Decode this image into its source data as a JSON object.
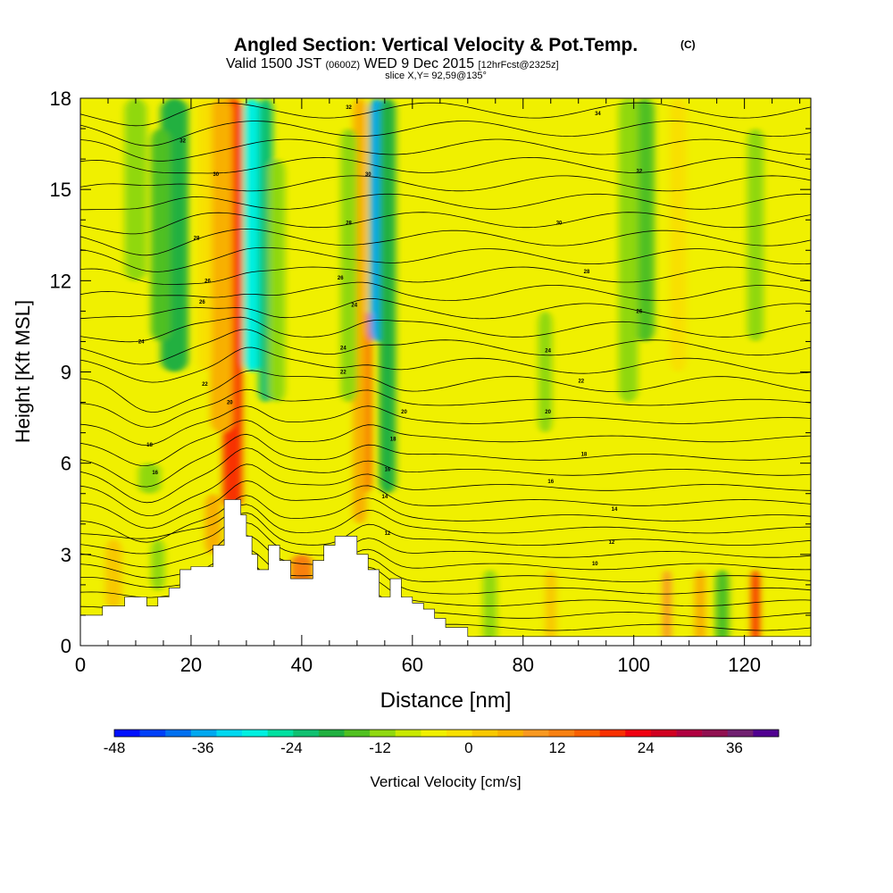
{
  "header": {
    "title": "Angled Section: Vertical Velocity & Pot.Temp.",
    "title_unit": "(C)",
    "valid_prefix": "Valid 1500 JST",
    "valid_utc": "(0600Z)",
    "valid_date": "WED 9 Dec 2015",
    "forecast": "[12hrFcst@2325z]",
    "slice": "slice X,Y= 92,59@135°"
  },
  "chart_data": {
    "type": "heatmap",
    "xlabel": "Distance [nm]",
    "ylabel": "Height [Kft MSL]",
    "xlim": [
      0,
      132
    ],
    "ylim": [
      0,
      18
    ],
    "x_ticks": [
      0,
      20,
      40,
      60,
      80,
      100,
      120
    ],
    "y_ticks": [
      0,
      3,
      6,
      9,
      12,
      15,
      18
    ],
    "background_value_cms": 2,
    "vertical_velocity_features": [
      {
        "x": 27.5,
        "width_nm": 3.5,
        "z_bottom": 4.5,
        "z_top": 18,
        "value": 28
      },
      {
        "x": 25.5,
        "width_nm": 4.0,
        "z_bottom": 7,
        "z_top": 18,
        "value": 14
      },
      {
        "x": 22.5,
        "width_nm": 2.5,
        "z_bottom": 9,
        "z_top": 18,
        "value": 7
      },
      {
        "x": 31.0,
        "width_nm": 3.0,
        "z_bottom": 9,
        "z_top": 18,
        "value": -28
      },
      {
        "x": 33.5,
        "width_nm": 2.5,
        "z_bottom": 8,
        "z_top": 18,
        "value": -18
      },
      {
        "x": 35.5,
        "width_nm": 3.0,
        "z_bottom": 8,
        "z_top": 16,
        "value": -8
      },
      {
        "x": 17.0,
        "width_nm": 5.0,
        "z_bottom": 9,
        "z_top": 18,
        "value": -16
      },
      {
        "x": 14.5,
        "width_nm": 3.5,
        "z_bottom": 10,
        "z_top": 17,
        "value": -12
      },
      {
        "x": 10.0,
        "width_nm": 4.0,
        "z_bottom": 12,
        "z_top": 18,
        "value": -6
      },
      {
        "x": 12.5,
        "width_nm": 4.0,
        "z_bottom": 5,
        "z_top": 6,
        "value": -6
      },
      {
        "x": 51.5,
        "width_nm": 2.0,
        "z_bottom": 5,
        "z_top": 11,
        "value": 30
      },
      {
        "x": 50.5,
        "width_nm": 2.5,
        "z_bottom": 4,
        "z_top": 18,
        "value": 12
      },
      {
        "x": 53.5,
        "width_nm": 2.5,
        "z_bottom": 10,
        "z_top": 18,
        "value": -34
      },
      {
        "x": 55.5,
        "width_nm": 3.0,
        "z_bottom": 5,
        "z_top": 18,
        "value": -14
      },
      {
        "x": 48.5,
        "width_nm": 3.0,
        "z_bottom": 8,
        "z_top": 17,
        "value": -6
      },
      {
        "x": 102.0,
        "width_nm": 3.5,
        "z_bottom": 10,
        "z_top": 18,
        "value": -12
      },
      {
        "x": 99.0,
        "width_nm": 3.5,
        "z_bottom": 8,
        "z_top": 18,
        "value": -6
      },
      {
        "x": 108.0,
        "width_nm": 3.0,
        "z_bottom": 9,
        "z_top": 18,
        "value": 7
      },
      {
        "x": 122.0,
        "width_nm": 3.0,
        "z_bottom": 10,
        "z_top": 17,
        "value": -6
      },
      {
        "x": 84.0,
        "width_nm": 2.5,
        "z_bottom": 7,
        "z_top": 11,
        "value": -7
      },
      {
        "x": 122.0,
        "width_nm": 1.5,
        "z_bottom": 0,
        "z_top": 2.5,
        "value": 30
      },
      {
        "x": 112.0,
        "width_nm": 2.0,
        "z_bottom": 0,
        "z_top": 2.5,
        "value": 14
      },
      {
        "x": 106.0,
        "width_nm": 1.5,
        "z_bottom": 0,
        "z_top": 2.5,
        "value": 18
      },
      {
        "x": 116.0,
        "width_nm": 2.5,
        "z_bottom": 0,
        "z_top": 2.5,
        "value": -10
      },
      {
        "x": 85.0,
        "width_nm": 2.0,
        "z_bottom": 0,
        "z_top": 2.5,
        "value": 10
      },
      {
        "x": 74.0,
        "width_nm": 2.5,
        "z_bottom": 0,
        "z_top": 2.5,
        "value": -8
      },
      {
        "x": 40.0,
        "width_nm": 4.0,
        "z_bottom": 1.8,
        "z_top": 3.0,
        "value": 20
      },
      {
        "x": 24.0,
        "width_nm": 3.0,
        "z_bottom": 3.0,
        "z_top": 5.0,
        "value": 12
      },
      {
        "x": 6.0,
        "width_nm": 3.0,
        "z_bottom": 1.2,
        "z_top": 3.5,
        "value": 8
      },
      {
        "x": 14.0,
        "width_nm": 2.5,
        "z_bottom": 1.8,
        "z_top": 3.5,
        "value": -8
      }
    ],
    "terrain": [
      [
        0,
        1
      ],
      [
        4,
        1
      ],
      [
        4,
        1.3
      ],
      [
        8,
        1.3
      ],
      [
        8,
        1.6
      ],
      [
        12,
        1.6
      ],
      [
        12,
        1.3
      ],
      [
        14,
        1.3
      ],
      [
        14,
        1.6
      ],
      [
        16,
        1.6
      ],
      [
        16,
        1.9
      ],
      [
        18,
        1.9
      ],
      [
        18,
        2.5
      ],
      [
        20,
        2.5
      ],
      [
        20,
        2.6
      ],
      [
        24,
        2.6
      ],
      [
        24,
        3.3
      ],
      [
        26,
        3.3
      ],
      [
        26,
        4.8
      ],
      [
        29,
        4.8
      ],
      [
        29,
        4.3
      ],
      [
        30,
        4.3
      ],
      [
        30,
        3.6
      ],
      [
        31,
        3.6
      ],
      [
        31,
        3.0
      ],
      [
        32,
        3.0
      ],
      [
        32,
        2.5
      ],
      [
        34,
        2.5
      ],
      [
        34,
        3.3
      ],
      [
        36,
        3.3
      ],
      [
        36,
        2.8
      ],
      [
        38,
        2.8
      ],
      [
        38,
        2.2
      ],
      [
        42,
        2.2
      ],
      [
        42,
        2.8
      ],
      [
        44,
        2.8
      ],
      [
        44,
        3.3
      ],
      [
        46,
        3.3
      ],
      [
        46,
        3.6
      ],
      [
        50,
        3.6
      ],
      [
        50,
        3.0
      ],
      [
        52,
        3.0
      ],
      [
        52,
        2.5
      ],
      [
        54,
        2.5
      ],
      [
        54,
        1.6
      ],
      [
        56,
        1.6
      ],
      [
        56,
        2.2
      ],
      [
        58,
        2.2
      ],
      [
        58,
        1.6
      ],
      [
        60,
        1.6
      ],
      [
        60,
        1.4
      ],
      [
        62,
        1.4
      ],
      [
        62,
        1.2
      ],
      [
        64,
        1.2
      ],
      [
        64,
        0.9
      ],
      [
        66,
        0.9
      ],
      [
        66,
        0.6
      ],
      [
        70,
        0.6
      ],
      [
        70,
        0.3
      ],
      [
        132,
        0.3
      ],
      [
        132,
        0
      ],
      [
        0,
        0
      ]
    ],
    "theta_contours": {
      "base_levels": [
        -0.5,
        -0.2,
        0.2,
        0.6,
        1.0,
        1.4,
        1.8,
        2.2,
        2.6,
        3.0,
        3.4,
        3.8,
        4.2,
        4.7,
        5.2,
        5.7,
        6.2,
        6.8,
        7.4,
        8.0,
        8.6,
        9.2,
        9.8,
        10.4,
        11.0,
        11.6,
        12.2,
        12.8,
        13.4,
        14.0,
        14.6,
        15.2,
        15.8,
        16.4,
        17.0,
        17.6
      ],
      "dip_center_x": 12,
      "dip_depth": 0.9,
      "ridge_bumps": [
        {
          "x": 30,
          "height": 1.2
        },
        {
          "x": 52,
          "height": 0.8
        }
      ]
    },
    "contour_labels": [
      {
        "text": "32",
        "x": 18.5,
        "z": 16.6
      },
      {
        "text": "30",
        "x": 24.5,
        "z": 15.5
      },
      {
        "text": "28",
        "x": 21.0,
        "z": 13.4
      },
      {
        "text": "26",
        "x": 23.0,
        "z": 12.0
      },
      {
        "text": "26",
        "x": 22.0,
        "z": 11.3
      },
      {
        "text": "24",
        "x": 11.0,
        "z": 10.0
      },
      {
        "text": "22",
        "x": 22.5,
        "z": 8.6
      },
      {
        "text": "20",
        "x": 27.0,
        "z": 8.0
      },
      {
        "text": "18",
        "x": 12.5,
        "z": 6.6
      },
      {
        "text": "16",
        "x": 13.5,
        "z": 5.7
      },
      {
        "text": "32",
        "x": 48.5,
        "z": 17.7
      },
      {
        "text": "30",
        "x": 52.0,
        "z": 15.5
      },
      {
        "text": "28",
        "x": 48.5,
        "z": 13.9
      },
      {
        "text": "26",
        "x": 47.0,
        "z": 12.1
      },
      {
        "text": "24",
        "x": 49.5,
        "z": 11.2
      },
      {
        "text": "24",
        "x": 47.5,
        "z": 9.8
      },
      {
        "text": "22",
        "x": 47.5,
        "z": 9.0
      },
      {
        "text": "20",
        "x": 58.5,
        "z": 7.7
      },
      {
        "text": "18",
        "x": 56.5,
        "z": 6.8
      },
      {
        "text": "16",
        "x": 55.5,
        "z": 5.8
      },
      {
        "text": "14",
        "x": 55.0,
        "z": 4.9
      },
      {
        "text": "12",
        "x": 55.5,
        "z": 3.7
      },
      {
        "text": "34",
        "x": 93.5,
        "z": 17.5
      },
      {
        "text": "32",
        "x": 101.0,
        "z": 15.6
      },
      {
        "text": "30",
        "x": 86.5,
        "z": 13.9
      },
      {
        "text": "28",
        "x": 91.5,
        "z": 12.3
      },
      {
        "text": "26",
        "x": 101.0,
        "z": 11.0
      },
      {
        "text": "24",
        "x": 84.5,
        "z": 9.7
      },
      {
        "text": "22",
        "x": 90.5,
        "z": 8.7
      },
      {
        "text": "20",
        "x": 84.5,
        "z": 7.7
      },
      {
        "text": "18",
        "x": 91.0,
        "z": 6.3
      },
      {
        "text": "16",
        "x": 85.0,
        "z": 5.4
      },
      {
        "text": "14",
        "x": 96.5,
        "z": 4.5
      },
      {
        "text": "12",
        "x": 96.0,
        "z": 3.4
      },
      {
        "text": "10",
        "x": 93.0,
        "z": 2.7
      }
    ],
    "colorbar": {
      "label": "Vertical Velocity [cm/s]",
      "range": [
        -48,
        42
      ],
      "step": 4,
      "tick_labels": [
        "-48",
        "-36",
        "-24",
        "-12",
        "0",
        "12",
        "24",
        "36"
      ],
      "tick_values": [
        -48,
        -36,
        -24,
        -12,
        0,
        12,
        24,
        36
      ],
      "colors": [
        "#0010ff",
        "#0040f8",
        "#0070f0",
        "#00a8f0",
        "#00d8f0",
        "#00f0e0",
        "#00e0a0",
        "#10c070",
        "#20b040",
        "#50c020",
        "#90d810",
        "#c8e800",
        "#f0f000",
        "#f8e000",
        "#f8c800",
        "#f8b000",
        "#f89820",
        "#f88010",
        "#f86000",
        "#f83000",
        "#f00010",
        "#d00020",
        "#b00040",
        "#901050",
        "#702070",
        "#500090"
      ]
    }
  }
}
